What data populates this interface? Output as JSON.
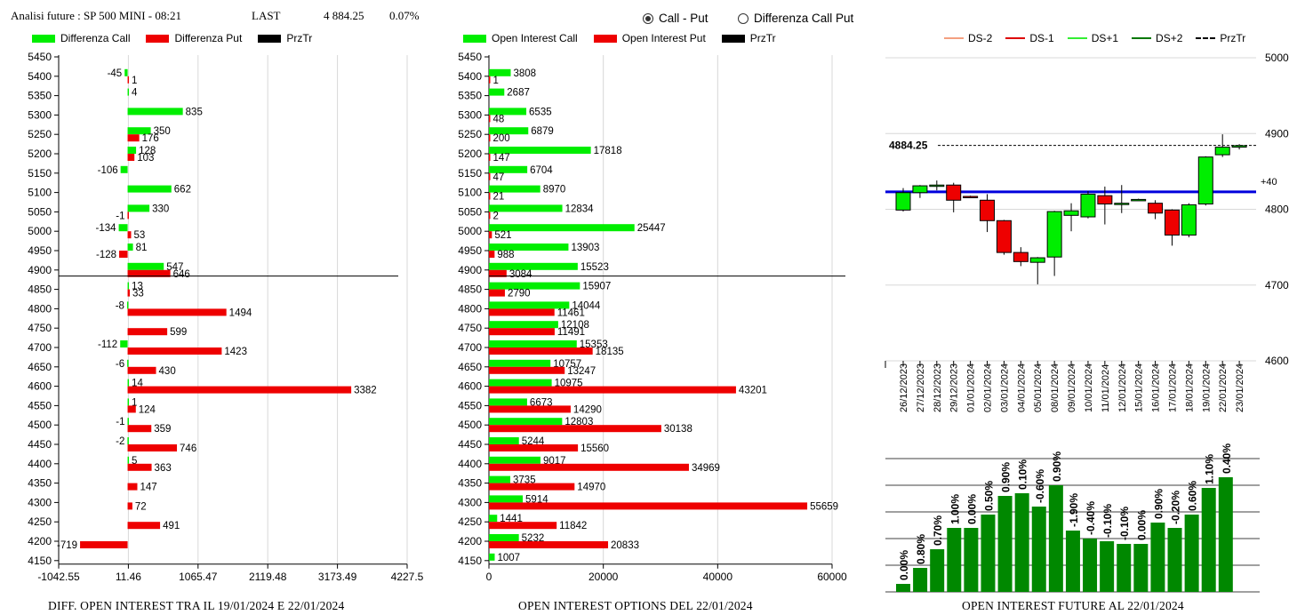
{
  "header": {
    "title": "Analisi future : SP 500 MINI - 08:21",
    "last_label": "LAST",
    "last_value": "4 884.25",
    "change": "0.07%"
  },
  "view_options": [
    {
      "label": "Call - Put",
      "selected": true
    },
    {
      "label": "Differenza Call Put",
      "selected": false
    }
  ],
  "legends": {
    "diff": [
      {
        "label": "Differenza Call",
        "color": "#00ee00"
      },
      {
        "label": "Differenza Put",
        "color": "#ee0000"
      },
      {
        "label": "PrzTr",
        "color": "#000000"
      }
    ],
    "oi": [
      {
        "label": "Open Interest Call",
        "color": "#00ee00"
      },
      {
        "label": "Open Interest Put",
        "color": "#ee0000"
      },
      {
        "label": "PrzTr",
        "color": "#000000"
      }
    ],
    "candles": [
      {
        "label": "DS-2",
        "color": "#f4a080",
        "dashed": false
      },
      {
        "label": "DS-1",
        "color": "#dd0000",
        "dashed": false
      },
      {
        "label": "DS+1",
        "color": "#33ee33",
        "dashed": false
      },
      {
        "label": "DS+2",
        "color": "#007700",
        "dashed": false
      },
      {
        "label": "PrzTr",
        "color": "#000000",
        "dashed": true
      }
    ]
  },
  "footers": {
    "diff": "DIFF. OPEN INTEREST TRA IL 19/01/2024 E 22/01/2024",
    "oi": "OPEN INTEREST OPTIONS DEL 22/01/2024",
    "future": "OPEN INTEREST FUTURE AL 22/01/2024"
  },
  "chart_data": [
    {
      "type": "bar",
      "orientation": "horizontal",
      "categories": [
        5450,
        5400,
        5350,
        5300,
        5250,
        5200,
        5150,
        5100,
        5050,
        5000,
        4950,
        4900,
        4850,
        4800,
        4750,
        4700,
        4650,
        4600,
        4550,
        4500,
        4450,
        4400,
        4350,
        4300,
        4250,
        4200,
        4150
      ],
      "series": [
        {
          "name": "Differenza Call",
          "values": [
            null,
            -45,
            4,
            835,
            350,
            128,
            -106,
            662,
            330,
            -134,
            81,
            547,
            13,
            -8,
            null,
            -112,
            -6,
            14,
            1,
            -1,
            -2,
            5,
            null,
            null,
            null,
            null,
            null
          ]
        },
        {
          "name": "Differenza Put",
          "values": [
            null,
            1,
            null,
            null,
            176,
            103,
            null,
            null,
            -1,
            53,
            -128,
            646,
            33,
            1494,
            599,
            1423,
            430,
            3382,
            124,
            359,
            746,
            363,
            147,
            72,
            491,
            -719,
            null
          ]
        }
      ],
      "xticks": [
        "-1042.55",
        "11.46",
        "1065.47",
        "2119.48",
        "3173.49",
        "4227.5"
      ],
      "xlim": [
        -1042.55,
        4227.5
      ],
      "price_line": 4884.25,
      "grid": true
    },
    {
      "type": "bar",
      "orientation": "horizontal",
      "categories": [
        5450,
        5400,
        5350,
        5300,
        5250,
        5200,
        5150,
        5100,
        5050,
        5000,
        4950,
        4900,
        4850,
        4800,
        4750,
        4700,
        4650,
        4600,
        4550,
        4500,
        4450,
        4400,
        4350,
        4300,
        4250,
        4200,
        4150
      ],
      "series": [
        {
          "name": "Open Interest Call",
          "values": [
            null,
            3808,
            2687,
            6535,
            6879,
            17818,
            6704,
            8970,
            12834,
            25447,
            13903,
            15523,
            15907,
            14044,
            12108,
            15353,
            10757,
            10975,
            6673,
            12803,
            5244,
            9017,
            3735,
            5914,
            1441,
            5232,
            1007
          ]
        },
        {
          "name": "Open Interest Put",
          "values": [
            null,
            1,
            null,
            48,
            200,
            147,
            47,
            21,
            2,
            521,
            988,
            3084,
            2790,
            11461,
            11491,
            18135,
            13247,
            43201,
            14290,
            30138,
            15560,
            34969,
            14970,
            55659,
            11842,
            20833,
            null
          ]
        }
      ],
      "xticks": [
        "0",
        "20000",
        "40000",
        "60000"
      ],
      "xlim": [
        0,
        60000
      ],
      "price_line": 4884.25,
      "grid": true
    },
    {
      "type": "candlestick",
      "dates": [
        "26/12/2023",
        "27/12/2023",
        "28/12/2023",
        "29/12/2023",
        "01/01/2024",
        "02/01/2024",
        "03/01/2024",
        "04/01/2024",
        "05/01/2024",
        "08/01/2024",
        "09/01/2024",
        "10/01/2024",
        "11/01/2024",
        "12/01/2024",
        "15/01/2024",
        "16/01/2024",
        "17/01/2024",
        "18/01/2024",
        "19/01/2024",
        "22/01/2024",
        "23/01/2024"
      ],
      "candles": [
        {
          "open": 4799,
          "high": 4828,
          "low": 4797,
          "close": 4822
        },
        {
          "open": 4822,
          "high": 4832,
          "low": 4815,
          "close": 4831
        },
        {
          "open": 4831,
          "high": 4838,
          "low": 4825,
          "close": 4832
        },
        {
          "open": 4832,
          "high": 4835,
          "low": 4796,
          "close": 4812
        },
        {
          "open": 4817,
          "high": 4818,
          "low": 4815,
          "close": 4816
        },
        {
          "open": 4812,
          "high": 4820,
          "low": 4770,
          "close": 4785
        },
        {
          "open": 4785,
          "high": 4786,
          "low": 4740,
          "close": 4743
        },
        {
          "open": 4743,
          "high": 4750,
          "low": 4725,
          "close": 4731
        },
        {
          "open": 4730,
          "high": 4737,
          "low": 4701,
          "close": 4736
        },
        {
          "open": 4737,
          "high": 4798,
          "low": 4712,
          "close": 4797
        },
        {
          "open": 4792,
          "high": 4808,
          "low": 4771,
          "close": 4798
        },
        {
          "open": 4790,
          "high": 4824,
          "low": 4788,
          "close": 4820
        },
        {
          "open": 4818,
          "high": 4830,
          "low": 4780,
          "close": 4807
        },
        {
          "open": 4808,
          "high": 4832,
          "low": 4795,
          "close": 4808
        },
        {
          "open": 4813,
          "high": 4814,
          "low": 4812,
          "close": 4813
        },
        {
          "open": 4808,
          "high": 4812,
          "low": 4787,
          "close": 4795
        },
        {
          "open": 4799,
          "high": 4800,
          "low": 4752,
          "close": 4766
        },
        {
          "open": 4766,
          "high": 4808,
          "low": 4763,
          "close": 4806
        },
        {
          "open": 4807,
          "high": 4870,
          "low": 4805,
          "close": 4869
        },
        {
          "open": 4872,
          "high": 4899,
          "low": 4869,
          "close": 4882
        },
        {
          "open": 4882,
          "high": 4886,
          "low": 4879,
          "close": 4884
        }
      ],
      "up_color": "#00ee00",
      "down_color": "#ee0000",
      "price_line": 4884.25,
      "price_label": "4884.25",
      "reference_line": 4823,
      "reference_label": "+40",
      "yticks": [
        "5000",
        "4900",
        "4800",
        "4700",
        "4600"
      ],
      "ylim": [
        4600,
        5000
      ],
      "grid": true
    },
    {
      "type": "bar",
      "categories": [
        "26/12/2023",
        "27/12/2023",
        "28/12/2023",
        "29/12/2023",
        "01/01/2024",
        "02/01/2024",
        "03/01/2024",
        "04/01/2024",
        "05/01/2024",
        "08/01/2024",
        "09/01/2024",
        "10/01/2024",
        "11/01/2024",
        "12/01/2024",
        "15/01/2024",
        "16/01/2024",
        "17/01/2024",
        "18/01/2024",
        "19/01/2024",
        "22/01/2024",
        "23/01/2024"
      ],
      "values": [
        3,
        9,
        16,
        24,
        24,
        29,
        36,
        37,
        32,
        40,
        23,
        20,
        19,
        18,
        18,
        26,
        24,
        29,
        39,
        43,
        null
      ],
      "labels": [
        "0.00%",
        "0.80%",
        "0.70%",
        "1.00%",
        "0.00%",
        "0.50%",
        "0.90%",
        "0.10%",
        "-0.60%",
        "0.90%",
        "-1.90%",
        "-0.40%",
        "-0.10%",
        "-0.10%",
        "0.00%",
        "0.90%",
        "-0.20%",
        "0.60%",
        "1.10%",
        "0.40%",
        ""
      ],
      "color": "#008800",
      "grid": true
    }
  ]
}
